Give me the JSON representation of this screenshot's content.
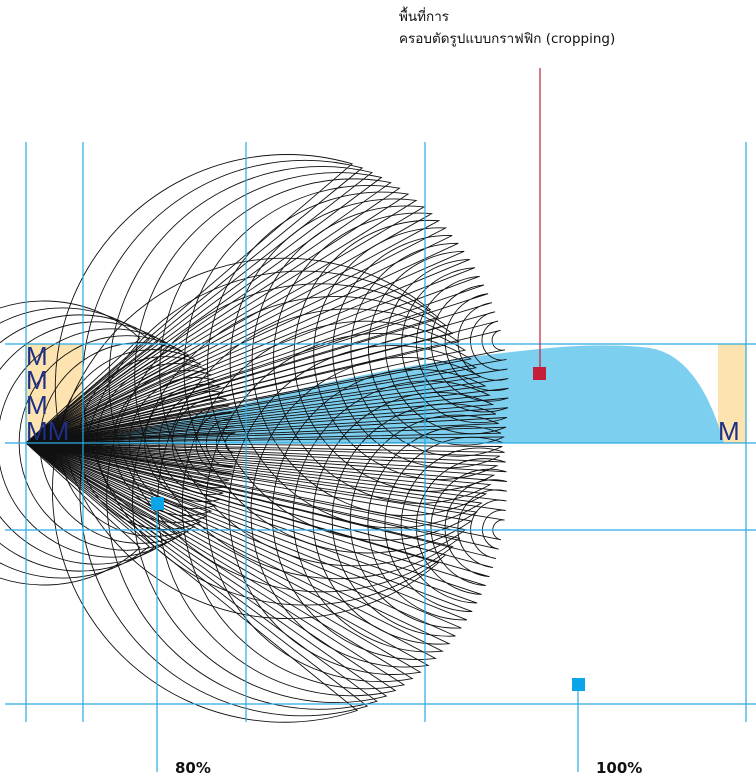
{
  "callout": {
    "line1": "พื้นที่การ",
    "line2": "ครอบตัดรูปแบบกราฟฟิก (cropping)"
  },
  "scale_labels": {
    "left": "80%",
    "right": "100%"
  },
  "margin_letters": {
    "left_stack": [
      "M",
      "M",
      "M",
      "MM"
    ],
    "right": "M"
  },
  "colors": {
    "guide_line": "#29abe2",
    "crop_fill": "#7dcff0",
    "margin_fill": "#fce3b0",
    "marker_blue": "#0aa5e8",
    "marker_red": "#c41e3a",
    "callout_line": "#c41e3a",
    "letter": "#1d2f86",
    "contour": "#111111"
  }
}
